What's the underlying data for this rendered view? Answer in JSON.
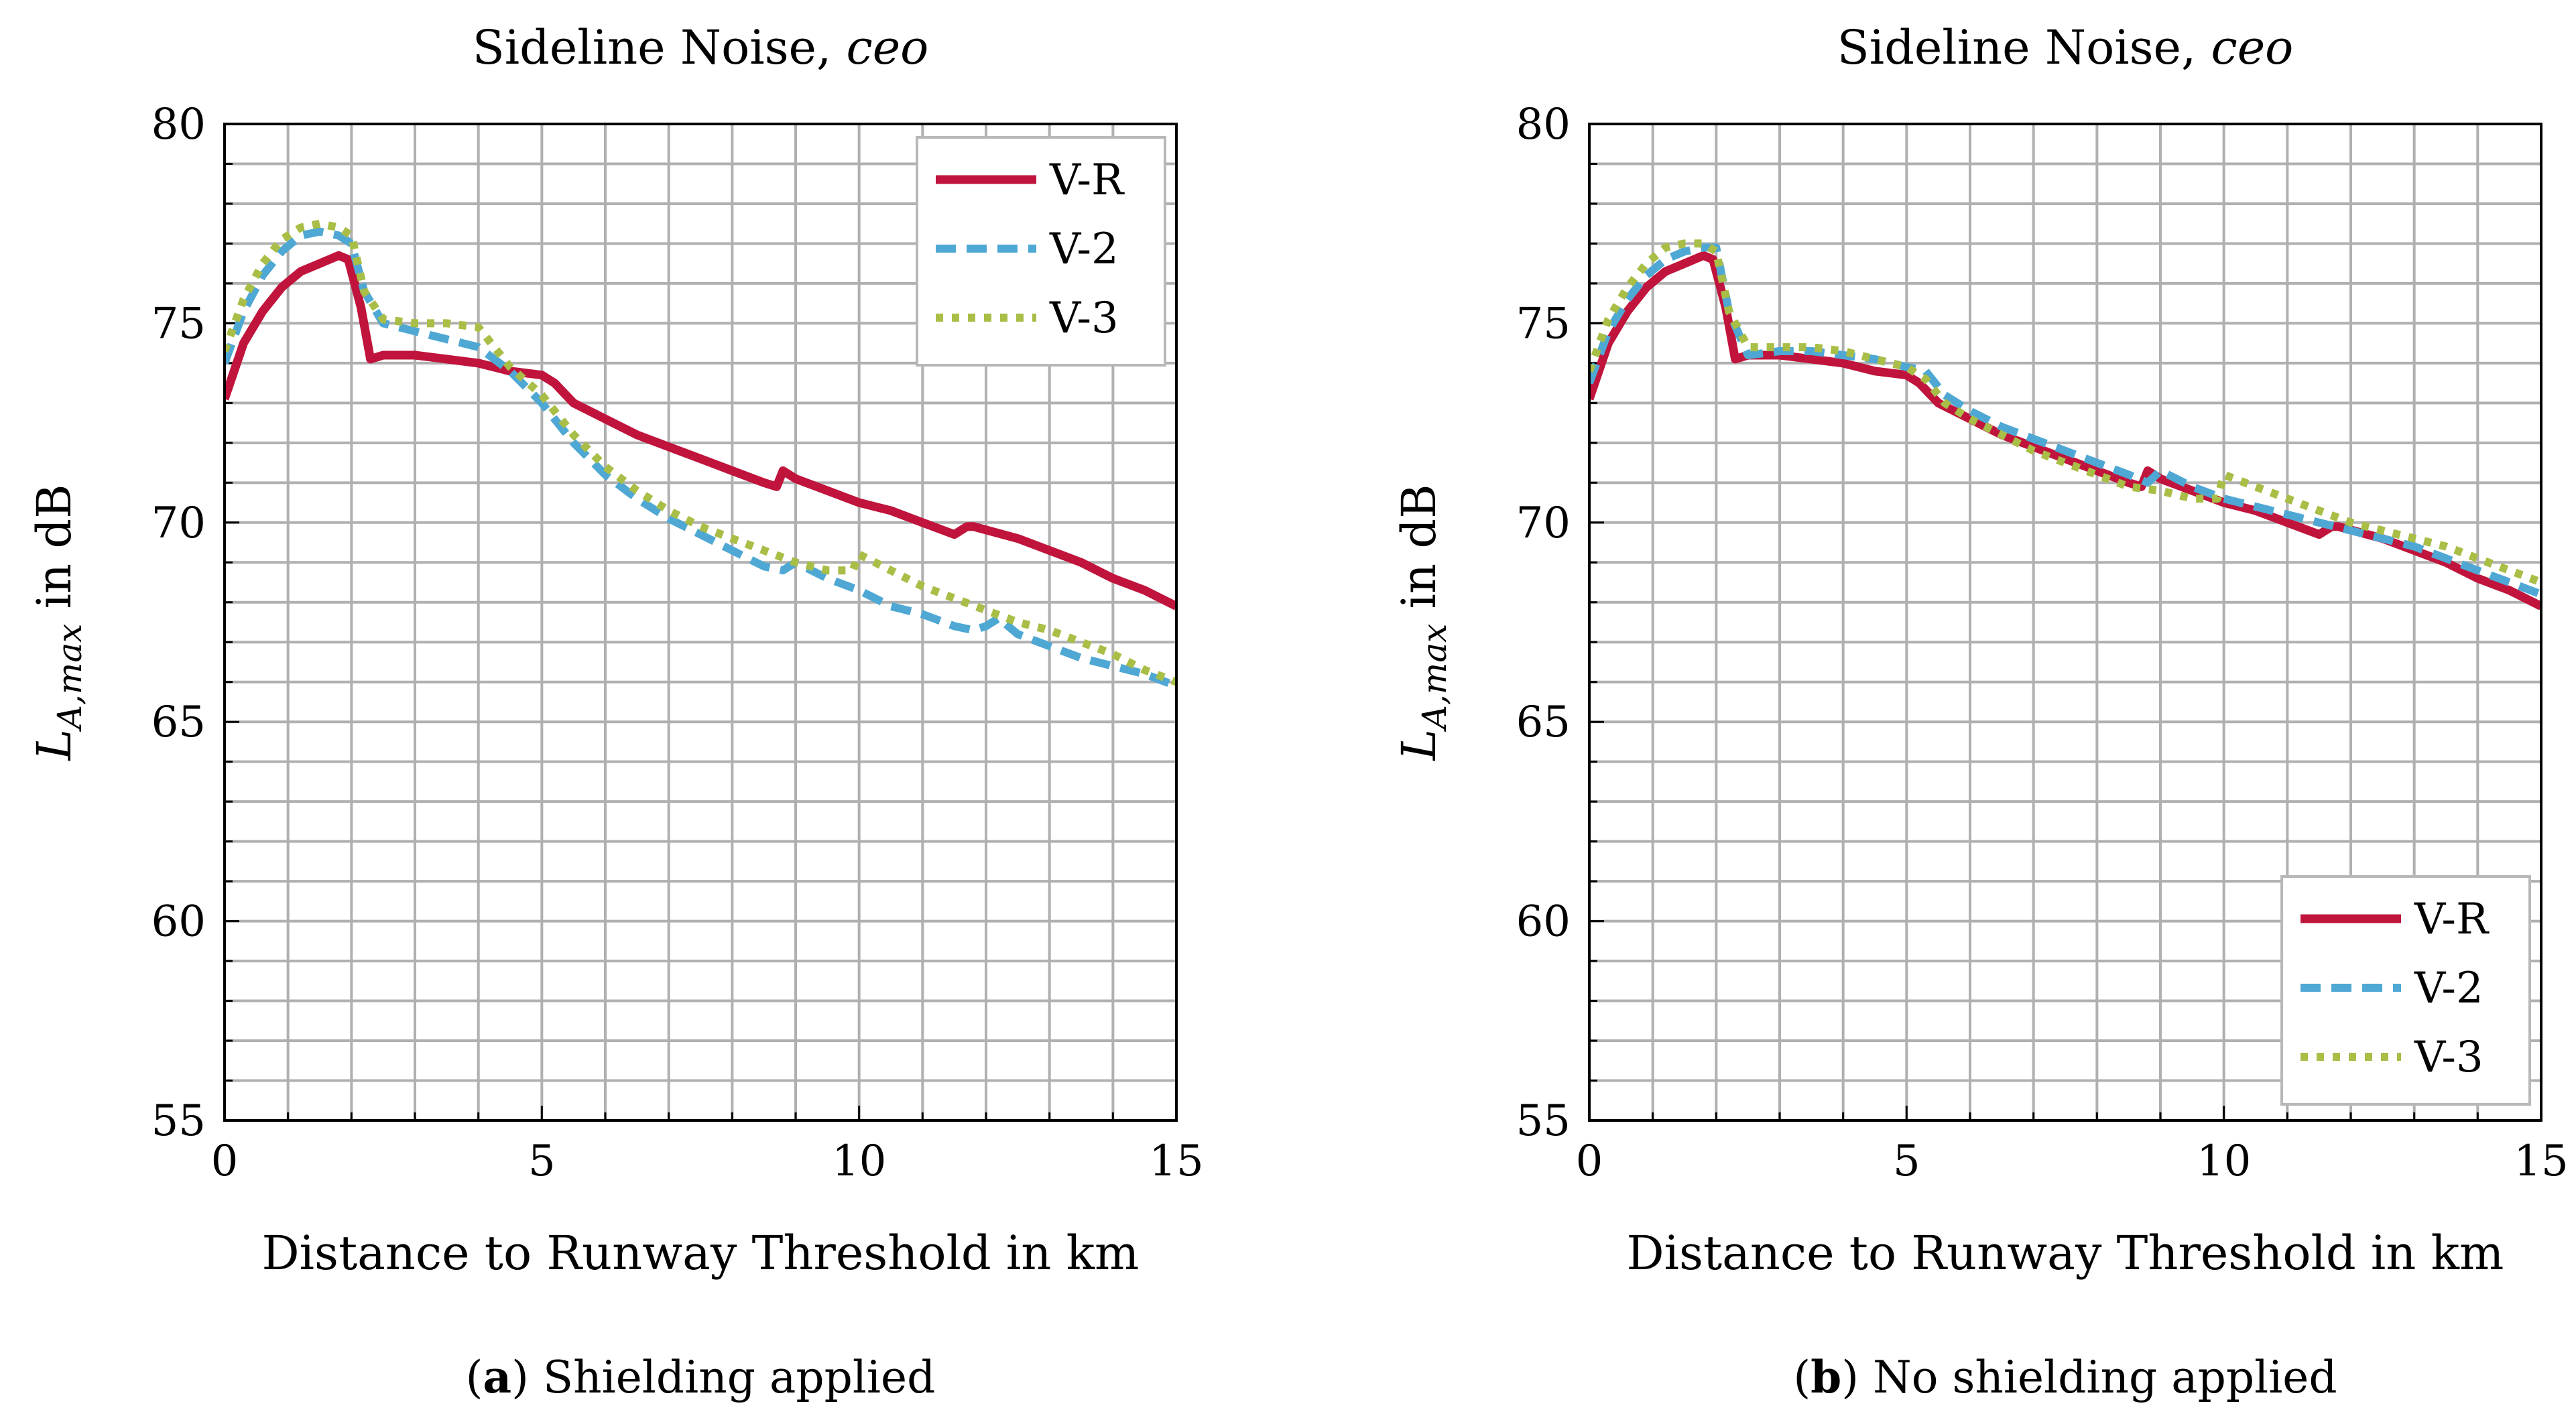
{
  "colors": {
    "V-R": "#C0143C",
    "V-2": "#4FA8D4",
    "V-3": "#A8BE46"
  },
  "chart_data": [
    {
      "type": "line",
      "title": "Sideline Noise,",
      "title_italic": "ceo",
      "xlabel": "Distance to Runway Threshold in km",
      "ylabel": "L",
      "ylabel_sub": "A,max",
      "ylabel_suffix": " in dB",
      "xlim": [
        0,
        15
      ],
      "ylim": [
        55,
        80
      ],
      "x_ticks": [
        "0",
        "5",
        "10",
        "15"
      ],
      "y_ticks": [
        "55",
        "60",
        "65",
        "70",
        "75",
        "80"
      ],
      "grid": true,
      "legend_position": "top-right",
      "caption_letter": "a",
      "caption": "Shielding applied",
      "series": [
        {
          "name": "V-R",
          "style": "solid",
          "x": [
            0,
            0.3,
            0.6,
            0.9,
            1.2,
            1.5,
            1.8,
            1.95,
            2.15,
            2.3,
            2.5,
            3.0,
            3.5,
            4.0,
            4.5,
            5.0,
            5.2,
            5.5,
            6.0,
            6.5,
            7.0,
            7.5,
            8.0,
            8.5,
            8.7,
            8.8,
            9.0,
            9.5,
            10.0,
            10.5,
            11.0,
            11.5,
            11.7,
            11.8,
            12.5,
            13.0,
            13.5,
            14.0,
            14.5,
            15.0
          ],
          "y": [
            73.1,
            74.5,
            75.3,
            75.9,
            76.3,
            76.5,
            76.7,
            76.6,
            75.4,
            74.1,
            74.2,
            74.2,
            74.1,
            74.0,
            73.8,
            73.7,
            73.5,
            73.0,
            72.6,
            72.2,
            71.9,
            71.6,
            71.3,
            71.0,
            70.9,
            71.3,
            71.1,
            70.8,
            70.5,
            70.3,
            70.0,
            69.7,
            69.9,
            69.9,
            69.6,
            69.3,
            69.0,
            68.6,
            68.3,
            67.9
          ]
        },
        {
          "name": "V-2",
          "style": "dashed",
          "x": [
            0,
            0.3,
            0.6,
            0.9,
            1.2,
            1.5,
            1.8,
            2.0,
            2.2,
            2.5,
            3.0,
            3.5,
            4.0,
            4.5,
            5.0,
            5.5,
            6.0,
            6.5,
            7.0,
            7.5,
            8.0,
            8.5,
            8.8,
            9.0,
            9.5,
            10.0,
            10.5,
            11.0,
            11.5,
            11.8,
            12.0,
            12.2,
            12.5,
            13.0,
            13.5,
            14.0,
            14.5,
            15.0
          ],
          "y": [
            74.0,
            75.3,
            76.2,
            76.8,
            77.2,
            77.3,
            77.2,
            77.0,
            75.8,
            75.0,
            74.8,
            74.6,
            74.4,
            73.8,
            73.0,
            72.0,
            71.2,
            70.6,
            70.1,
            69.7,
            69.3,
            68.9,
            68.8,
            69.0,
            68.6,
            68.3,
            67.9,
            67.7,
            67.4,
            67.3,
            67.4,
            67.6,
            67.2,
            66.9,
            66.6,
            66.4,
            66.2,
            65.9
          ]
        },
        {
          "name": "V-3",
          "style": "dotted",
          "x": [
            0,
            0.3,
            0.6,
            0.9,
            1.2,
            1.5,
            1.8,
            2.0,
            2.2,
            2.5,
            3.0,
            3.5,
            4.0,
            4.5,
            5.0,
            5.5,
            6.0,
            6.5,
            7.0,
            7.5,
            8.0,
            8.5,
            9.0,
            9.5,
            9.9,
            10.0,
            10.5,
            11.0,
            11.5,
            12.0,
            12.5,
            13.0,
            13.5,
            14.0,
            14.5,
            15.0
          ],
          "y": [
            74.3,
            75.6,
            76.5,
            77.1,
            77.4,
            77.5,
            77.4,
            77.2,
            75.8,
            75.1,
            75.0,
            75.0,
            74.9,
            73.9,
            73.2,
            72.2,
            71.4,
            70.8,
            70.3,
            69.9,
            69.6,
            69.3,
            69.0,
            68.8,
            68.8,
            69.2,
            68.8,
            68.4,
            68.1,
            67.8,
            67.5,
            67.3,
            67.0,
            66.7,
            66.3,
            66.0
          ]
        }
      ]
    },
    {
      "type": "line",
      "title": "Sideline Noise,",
      "title_italic": "ceo",
      "xlabel": "Distance to Runway Threshold in km",
      "ylabel": "L",
      "ylabel_sub": "A,max",
      "ylabel_suffix": " in dB",
      "xlim": [
        0,
        15
      ],
      "ylim": [
        55,
        80
      ],
      "x_ticks": [
        "0",
        "5",
        "10",
        "15"
      ],
      "y_ticks": [
        "55",
        "60",
        "65",
        "70",
        "75",
        "80"
      ],
      "grid": true,
      "legend_position": "bottom-right",
      "caption_letter": "b",
      "caption": "No shielding applied",
      "series": [
        {
          "name": "V-R",
          "style": "solid",
          "x": [
            0,
            0.3,
            0.6,
            0.9,
            1.2,
            1.5,
            1.8,
            1.95,
            2.15,
            2.3,
            2.5,
            3.0,
            3.5,
            4.0,
            4.5,
            5.0,
            5.2,
            5.5,
            6.0,
            6.5,
            7.0,
            7.5,
            8.0,
            8.5,
            8.7,
            8.8,
            9.0,
            9.5,
            10.0,
            10.5,
            11.0,
            11.5,
            11.7,
            11.8,
            12.5,
            13.0,
            13.5,
            14.0,
            14.5,
            15.0
          ],
          "y": [
            73.1,
            74.5,
            75.3,
            75.9,
            76.3,
            76.5,
            76.7,
            76.6,
            75.4,
            74.1,
            74.2,
            74.2,
            74.1,
            74.0,
            73.8,
            73.7,
            73.5,
            73.0,
            72.6,
            72.2,
            71.9,
            71.6,
            71.3,
            71.0,
            70.9,
            71.3,
            71.1,
            70.8,
            70.5,
            70.3,
            70.0,
            69.7,
            69.9,
            69.9,
            69.6,
            69.3,
            69.0,
            68.6,
            68.3,
            67.9
          ]
        },
        {
          "name": "V-2",
          "style": "dashed",
          "x": [
            0,
            0.3,
            0.6,
            0.9,
            1.2,
            1.5,
            1.8,
            2.0,
            2.2,
            2.5,
            3.0,
            3.5,
            4.0,
            4.5,
            5.0,
            5.3,
            5.6,
            6.0,
            6.5,
            7.0,
            7.5,
            8.0,
            8.5,
            8.8,
            9.0,
            9.5,
            10.0,
            10.5,
            11.0,
            11.5,
            12.0,
            12.5,
            13.0,
            13.5,
            14.0,
            14.5,
            15.0
          ],
          "y": [
            73.5,
            74.8,
            75.6,
            76.2,
            76.6,
            76.8,
            76.9,
            76.9,
            75.3,
            74.2,
            74.3,
            74.3,
            74.2,
            74.1,
            73.9,
            73.8,
            73.2,
            72.8,
            72.4,
            72.1,
            71.8,
            71.5,
            71.2,
            71.0,
            71.3,
            70.9,
            70.6,
            70.4,
            70.2,
            70.0,
            69.8,
            69.6,
            69.4,
            69.1,
            68.8,
            68.5,
            68.2
          ]
        },
        {
          "name": "V-3",
          "style": "dotted",
          "x": [
            0,
            0.3,
            0.6,
            0.9,
            1.2,
            1.5,
            1.8,
            2.0,
            2.2,
            2.5,
            3.0,
            3.5,
            4.0,
            4.5,
            5.0,
            5.3,
            5.6,
            6.0,
            6.5,
            7.0,
            7.5,
            8.0,
            8.5,
            9.0,
            9.5,
            9.9,
            10.0,
            10.5,
            11.0,
            11.5,
            12.0,
            12.5,
            13.0,
            13.5,
            14.0,
            14.5,
            15.0
          ],
          "y": [
            73.8,
            75.1,
            75.9,
            76.5,
            76.9,
            77.0,
            77.0,
            76.8,
            75.3,
            74.4,
            74.4,
            74.4,
            74.3,
            74.1,
            73.9,
            73.6,
            73.0,
            72.6,
            72.2,
            71.8,
            71.5,
            71.2,
            70.9,
            70.8,
            70.6,
            70.6,
            71.2,
            70.9,
            70.6,
            70.3,
            70.0,
            69.8,
            69.6,
            69.4,
            69.1,
            68.8,
            68.5
          ]
        }
      ]
    }
  ]
}
